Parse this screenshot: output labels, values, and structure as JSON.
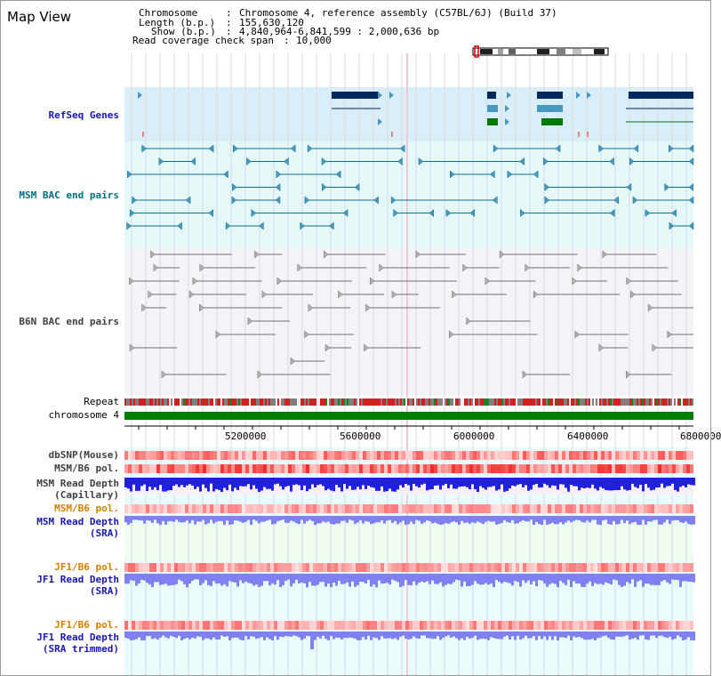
{
  "app_title": "Map View",
  "header": {
    "chromosome_label": "Chromosome",
    "chromosome_value": "Chromosome 4, reference assembly (C57BL/6J) (Build 37)",
    "length_label": "Length (b.p.)",
    "length_value": "155,630,120",
    "show_label": "Show (b.p.)",
    "show_value": "4,840,964-6,841,599 : 2,000,636 bp",
    "coverage_label": "Read coverage check span",
    "coverage_value": "10,000"
  },
  "tracks": {
    "refseq": "RefSeq Genes",
    "msm_bac": "MSM BAC end pairs",
    "b6n_bac": "B6N BAC end pairs",
    "repeat": "Repeat",
    "chromosome": "chromosome 4",
    "dbsnp": "dbSNP(Mouse)",
    "msm_b6_pol_1": "MSM/B6 pol.",
    "msm_read_depth_cap_1": "MSM Read Depth",
    "msm_read_depth_cap_2": "(Capillary)",
    "msm_b6_pol_2": "MSM/B6 pol.",
    "msm_read_depth_sra_1": "MSM Read Depth",
    "msm_read_depth_sra_2": "(SRA)",
    "jf1_b6_pol_1": "JF1/B6 pol.",
    "jf1_read_depth_sra_1": "JF1 Read Depth",
    "jf1_read_depth_sra_2": "(SRA)",
    "jf1_b6_pol_2": "JF1/B6 pol.",
    "jf1_read_depth_trim_1": "JF1 Read Depth",
    "jf1_read_depth_trim_2": "(SRA trimmed)"
  },
  "axis": {
    "ticks": [
      "5200000",
      "5600000",
      "6000000",
      "6400000",
      "6800000"
    ]
  },
  "colors": {
    "refseq_bg": "#d8eef8",
    "msm_bac_bg": "#e4f8f8",
    "b6n_bg": "#f4f4f8",
    "lower_bg": "#e8fcfc",
    "msm_sra_bg": "#f0fcf0",
    "label_blue": "#1818b0",
    "label_teal": "#007080",
    "label_orange": "#d08000",
    "gene_navy": "#002860",
    "gene_teal": "#4898c0",
    "gene_green": "#007800",
    "bac_teal": "#107088",
    "bac_gray": "#707070",
    "chrom_green": "#008000",
    "depth_blue": "#2020e0",
    "depth_lilac": "#8080f0"
  }
}
